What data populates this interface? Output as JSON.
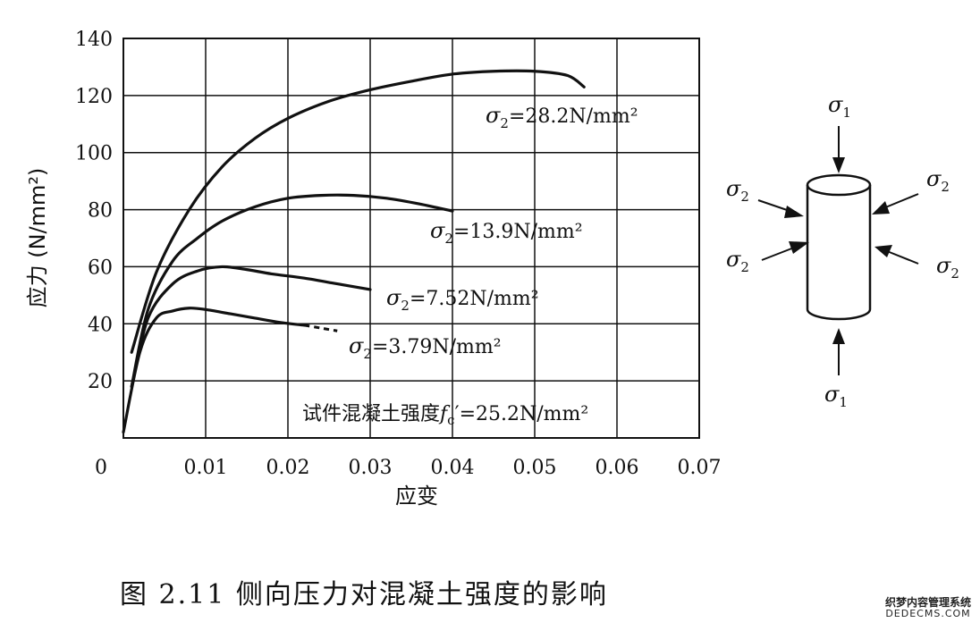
{
  "chart_data": {
    "type": "line",
    "xlabel": "应变",
    "ylabel": "应力 (N/mm²)",
    "xlim": [
      0,
      0.07
    ],
    "ylim": [
      0,
      140
    ],
    "x_ticks": [
      "0",
      "0.01",
      "0.02",
      "0.03",
      "0.04",
      "0.05",
      "0.06",
      "0.07"
    ],
    "y_ticks": [
      "20",
      "40",
      "60",
      "80",
      "100",
      "120",
      "140"
    ],
    "grid": true,
    "annotation": "试件混凝土强度f c′=25.2N/mm²",
    "annotation_parts": {
      "prefix": "试件混凝土强度",
      "f": "f",
      "sub": "c",
      "rest": "′=25.2N/mm²"
    },
    "series": [
      {
        "name": "σ2=28.2N/mm²",
        "label_main": "σ",
        "label_sub": "2",
        "label_rest": "=28.2N/mm²",
        "x": [
          0.001,
          0.004,
          0.008,
          0.012,
          0.016,
          0.02,
          0.025,
          0.03,
          0.035,
          0.04,
          0.045,
          0.05,
          0.054,
          0.056
        ],
        "y": [
          30,
          58,
          80,
          95,
          105,
          112,
          118,
          122,
          125,
          127.5,
          128.5,
          128.5,
          127,
          123
        ]
      },
      {
        "name": "σ2=13.9N/mm²",
        "label_main": "σ",
        "label_sub": "2",
        "label_rest": "=13.9N/mm²",
        "x": [
          0.001,
          0.003,
          0.006,
          0.009,
          0.012,
          0.016,
          0.02,
          0.024,
          0.028,
          0.032,
          0.036,
          0.04
        ],
        "y": [
          18,
          45,
          62,
          70,
          76,
          81,
          84,
          85,
          85,
          84,
          82,
          79.5
        ]
      },
      {
        "name": "σ2=7.52N/mm²",
        "label_main": "σ",
        "label_sub": "2",
        "label_rest": "=7.52N/mm²",
        "x": [
          0.001,
          0.003,
          0.006,
          0.009,
          0.012,
          0.015,
          0.018,
          0.022,
          0.026,
          0.03
        ],
        "y": [
          18,
          42,
          54,
          58.5,
          60,
          59,
          57.5,
          56,
          54,
          52
        ]
      },
      {
        "name": "σ2=3.79N/mm²",
        "label_main": "σ",
        "label_sub": "2",
        "label_rest": "=3.79N/mm²",
        "x": [
          0,
          0.002,
          0.004,
          0.006,
          0.008,
          0.01,
          0.013,
          0.016,
          0.019,
          0.022
        ],
        "y": [
          2,
          30,
          42,
          44.5,
          45.5,
          45,
          43.5,
          42,
          40.5,
          39.5
        ],
        "dashed_x": [
          0.022,
          0.024,
          0.026
        ],
        "dashed_y": [
          39.5,
          38.5,
          37.5
        ]
      }
    ]
  },
  "diagram": {
    "sigma1_main": "σ",
    "sigma1_sub": "1",
    "sigma2_main": "σ",
    "sigma2_sub": "2"
  },
  "caption": "图 2.11  侧向压力对混凝土强度的影响",
  "watermark": {
    "line1": "织梦内容管理系统",
    "line2": "DEDECMS.COM"
  }
}
